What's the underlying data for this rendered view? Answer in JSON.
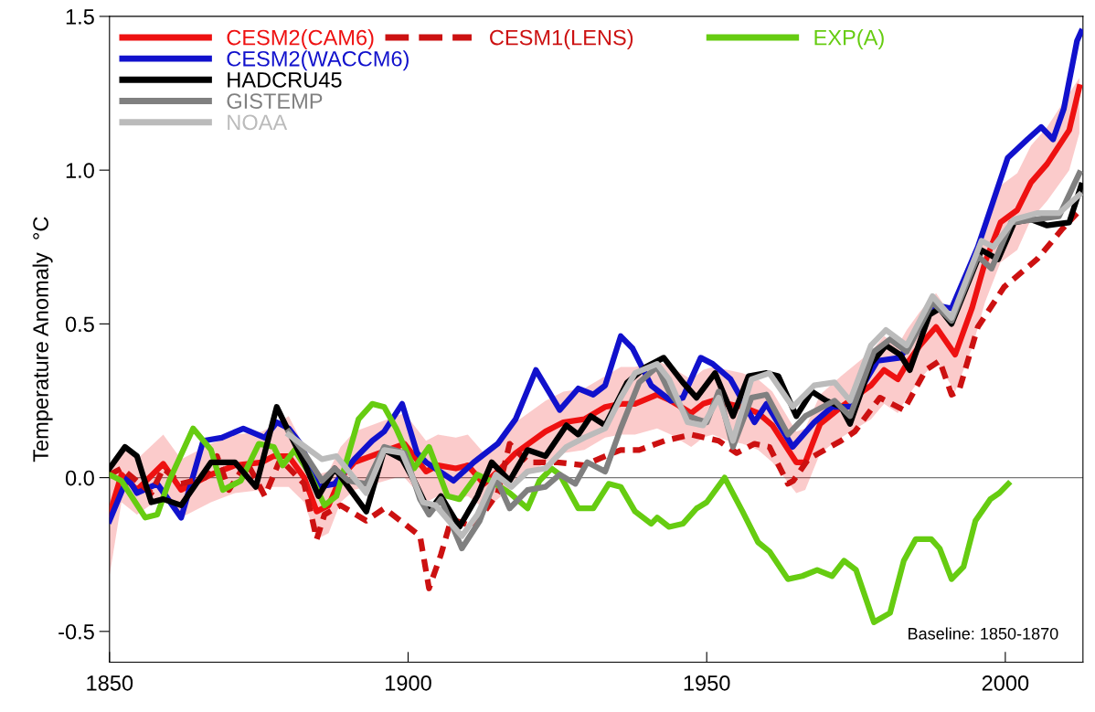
{
  "chart_data": {
    "type": "line",
    "ylabel": "Temperature Anomaly  °C",
    "xlim": [
      1850,
      2013
    ],
    "xticks": [
      1850,
      1900,
      1950,
      2000
    ],
    "ylim": [
      -0.6,
      1.5
    ],
    "yticks": [
      {
        "value": -0.5,
        "label": "-0.5"
      },
      {
        "value": 0,
        "label": "0.0"
      },
      {
        "value": 0.5,
        "label": "0.5"
      },
      {
        "value": 1,
        "label": "1.0"
      },
      {
        "value": 1.5,
        "label": "1.5"
      }
    ],
    "grid": false,
    "legend": "top left",
    "line_style": "solid",
    "marker": "none",
    "ref_lines": [
      {
        "axis": "y",
        "value": 0,
        "color": "#777777"
      }
    ],
    "annotations": [
      "Baseline: 1850-1870"
    ],
    "series": [
      {
        "name": "CESM2(CAM6)",
        "color": "#ee1111",
        "x": [
          1850,
          1852,
          1854.6,
          1859,
          1862,
          1867,
          1871,
          1875.5,
          1877.5,
          1880,
          1882.6,
          1884.7,
          1886.7,
          1888.7,
          1891,
          1898,
          1899.4,
          1903,
          1905,
          1908,
          1910,
          1912.7,
          1915,
          1918,
          1923,
          1926,
          1929.5,
          1933,
          1935.6,
          1938,
          1941.7,
          1944,
          1947.4,
          1949.4,
          1951,
          1953.5,
          1956,
          1958.6,
          1961,
          1965,
          1966.5,
          1969,
          1972.5,
          1977.5,
          1979.7,
          1982,
          1983.5,
          1985.7,
          1988.4,
          1991.6,
          1994.4,
          1996.6,
          1999.2,
          2002,
          2004.3,
          2007,
          2010.7,
          2012.4
        ],
        "values": [
          -0.12,
          0.01,
          -0.04,
          0.045,
          -0.04,
          0.01,
          0.04,
          0.05,
          0.07,
          0.07,
          0,
          -0.11,
          -0.09,
          0,
          0.05,
          0.1,
          0.11,
          0.02,
          0.04,
          0.03,
          0.04,
          -0.02,
          0.02,
          0.08,
          0.15,
          0.18,
          0.19,
          0.23,
          0.24,
          0.24,
          0.27,
          0.25,
          0.21,
          0.24,
          0.25,
          0.24,
          0.23,
          0.21,
          0.17,
          0.05,
          0.05,
          0.175,
          0.23,
          0.3,
          0.35,
          0.32,
          0.37,
          0.43,
          0.49,
          0.4,
          0.55,
          0.7,
          0.83,
          0.87,
          0.96,
          1.02,
          1.13,
          1.27
        ],
        "lower": [
          -0.32,
          -0.08,
          -0.12,
          -0.06,
          -0.13,
          -0.08,
          -0.05,
          -0.04,
          -0.03,
          -0.03,
          -0.08,
          -0.2,
          -0.18,
          -0.08,
          -0.04,
          0.0,
          0.0,
          -0.08,
          -0.06,
          -0.07,
          -0.06,
          -0.1,
          -0.07,
          -0.02,
          0.05,
          0.08,
          0.09,
          0.13,
          0.14,
          0.14,
          0.16,
          0.14,
          0.1,
          0.13,
          0.14,
          0.12,
          0.11,
          0.09,
          0.05,
          -0.05,
          -0.04,
          0.08,
          0.13,
          0.19,
          0.24,
          0.21,
          0.26,
          0.32,
          0.38,
          0.28,
          0.42,
          0.57,
          0.7,
          0.74,
          0.84,
          0.9,
          1.0,
          1.12
        ],
        "upper": [
          0.0,
          0.1,
          0.06,
          0.14,
          0.06,
          0.11,
          0.14,
          0.15,
          0.17,
          0.2,
          0.1,
          0.01,
          0.02,
          0.1,
          0.15,
          0.2,
          0.21,
          0.12,
          0.14,
          0.13,
          0.14,
          0.08,
          0.12,
          0.18,
          0.25,
          0.28,
          0.29,
          0.33,
          0.36,
          0.36,
          0.38,
          0.36,
          0.32,
          0.35,
          0.36,
          0.35,
          0.34,
          0.32,
          0.28,
          0.15,
          0.16,
          0.27,
          0.33,
          0.41,
          0.46,
          0.43,
          0.48,
          0.54,
          0.6,
          0.51,
          0.67,
          0.82,
          0.95,
          0.99,
          1.08,
          1.14,
          1.25,
          1.3
        ]
      },
      {
        "name": "CESM2(WACCM6)",
        "color": "#1111cc",
        "x": [
          1850,
          1853,
          1854.6,
          1858,
          1862,
          1865.7,
          1868.8,
          1872.4,
          1876,
          1878,
          1880,
          1882,
          1885,
          1887.7,
          1891,
          1894,
          1896,
          1899,
          1901.5,
          1903,
          1907.6,
          1911,
          1915,
          1918,
          1921.4,
          1925.4,
          1928.5,
          1931,
          1933,
          1935.6,
          1937.6,
          1940.7,
          1944,
          1946,
          1949,
          1951,
          1954,
          1958,
          1960,
          1964.4,
          1968,
          1971,
          1974,
          1978.6,
          1982.4,
          1985.7,
          1988.4,
          1991,
          1995.4,
          2000.4,
          2003.7,
          2006,
          2008,
          2009.8,
          2012,
          2012.7
        ],
        "values": [
          -0.14,
          0,
          -0.05,
          -0.02,
          -0.13,
          0.12,
          0.13,
          0.16,
          0.13,
          0.18,
          0.16,
          0.11,
          -0.03,
          -0.02,
          0.06,
          0.12,
          0.15,
          0.24,
          0.08,
          0.05,
          -0.01,
          0.05,
          0.11,
          0.19,
          0.35,
          0.22,
          0.29,
          0.27,
          0.3,
          0.46,
          0.42,
          0.3,
          0.25,
          0.26,
          0.39,
          0.37,
          0.32,
          0.18,
          0.24,
          0.1,
          0.18,
          0.23,
          0.23,
          0.38,
          0.39,
          0.49,
          0.56,
          0.55,
          0.75,
          1.04,
          1.1,
          1.14,
          1.1,
          1.2,
          1.42,
          1.45
        ]
      },
      {
        "name": "CESM1(LENS)",
        "color": "#cc1111",
        "line_style": "dashed",
        "x": [
          1850,
          1852,
          1857,
          1859,
          1862,
          1866,
          1868,
          1870,
          1873,
          1876,
          1878.6,
          1882.6,
          1884.7,
          1886,
          1888.7,
          1893,
          1896,
          1899.4,
          1902,
          1903.5,
          1905.5,
          1907,
          1908,
          1911,
          1915,
          1917,
          1920,
          1925,
          1929.5,
          1933,
          1935.6,
          1938.7,
          1943,
          1947.4,
          1952,
          1955,
          1958,
          1960.5,
          1963.6,
          1964.5,
          1967,
          1972.5,
          1974.8,
          1979,
          1983,
          1986.7,
          1989,
          1991,
          1992.2,
          1995.4,
          1999.8,
          2005.3,
          2009.6,
          2012
        ],
        "values": [
          0.01,
          0.03,
          -0.05,
          0.03,
          -0.02,
          0,
          0.07,
          -0.04,
          0.05,
          -0.06,
          0.06,
          -0.02,
          -0.2,
          -0.12,
          -0.09,
          -0.14,
          -0.1,
          -0.15,
          -0.19,
          -0.36,
          -0.25,
          -0.15,
          -0.14,
          -0.16,
          -0.05,
          0.11,
          0.05,
          0.05,
          0.04,
          0.07,
          0.09,
          0.09,
          0.12,
          0.14,
          0.12,
          0.08,
          0.11,
          0.1,
          -0.02,
          -0.01,
          0.06,
          0.12,
          0.15,
          0.26,
          0.22,
          0.35,
          0.38,
          0.27,
          0.28,
          0.49,
          0.62,
          0.71,
          0.81,
          0.86
        ]
      },
      {
        "name": "EXP(A)",
        "color": "#66cc11",
        "x": [
          1850,
          1852,
          1856,
          1858,
          1860,
          1864,
          1867,
          1869,
          1872,
          1875,
          1877.5,
          1879,
          1881,
          1883.6,
          1886,
          1888,
          1891.7,
          1894,
          1896,
          1898,
          1901,
          1903.5,
          1906.6,
          1908.6,
          1911.6,
          1913.8,
          1917,
          1920,
          1922,
          1924,
          1925.4,
          1928.5,
          1931,
          1933.6,
          1935.6,
          1938,
          1940.7,
          1941.7,
          1943.7,
          1946,
          1948.3,
          1950,
          1953,
          1956,
          1958.6,
          1960.5,
          1963.6,
          1966,
          1968.5,
          1971,
          1973,
          1975,
          1978,
          1980.7,
          1983,
          1985,
          1987.6,
          1989,
          1991,
          1993,
          1995,
          1997.5,
          1999,
          2000.5
        ],
        "values": [
          0.01,
          -0.01,
          -0.13,
          -0.12,
          -0.01,
          0.16,
          0.09,
          -0.04,
          -0.01,
          0.11,
          0.1,
          0.04,
          0.09,
          0.01,
          -0.09,
          -0.06,
          0.19,
          0.24,
          0.23,
          0.16,
          0.03,
          0.1,
          -0.06,
          -0.07,
          0.01,
          -0.01,
          -0.05,
          -0.1,
          -0.01,
          0.03,
          0.01,
          -0.1,
          -0.1,
          -0.02,
          -0.03,
          -0.11,
          -0.15,
          -0.13,
          -0.16,
          -0.15,
          -0.1,
          -0.08,
          0,
          -0.11,
          -0.21,
          -0.24,
          -0.33,
          -0.32,
          -0.3,
          -0.32,
          -0.27,
          -0.3,
          -0.47,
          -0.44,
          -0.27,
          -0.2,
          -0.2,
          -0.23,
          -0.33,
          -0.29,
          -0.14,
          -0.07,
          -0.05,
          -0.02
        ]
      },
      {
        "name": "HADCRU45",
        "color": "#000000",
        "x": [
          1850,
          1852.6,
          1854.6,
          1857,
          1859,
          1862,
          1867,
          1871,
          1874.5,
          1878,
          1880,
          1882.6,
          1885,
          1887.7,
          1893,
          1896,
          1899,
          1901,
          1903.5,
          1905.5,
          1908.6,
          1911.6,
          1914,
          1917,
          1920,
          1923,
          1926.5,
          1928.5,
          1930.6,
          1933,
          1936.7,
          1939.8,
          1942.8,
          1946,
          1948.3,
          1951.4,
          1954.4,
          1957,
          1960,
          1962,
          1965,
          1967.6,
          1970,
          1972.5,
          1974,
          1977.5,
          1980,
          1982.4,
          1984,
          1987.3,
          1989,
          1991,
          1996,
          1998.8,
          2001.5,
          2004.3,
          2007,
          2010.7,
          2012.7
        ],
        "values": [
          0.03,
          0.1,
          0.07,
          -0.08,
          -0.07,
          -0.09,
          0.05,
          0.05,
          -0.03,
          0.23,
          0.15,
          0.05,
          -0.06,
          0.03,
          -0.11,
          0.09,
          0.06,
          -0.01,
          -0.11,
          -0.06,
          -0.16,
          -0.06,
          0.05,
          -0.01,
          0.09,
          0.07,
          0.17,
          0.14,
          0.2,
          0.17,
          0.31,
          0.36,
          0.39,
          0.31,
          0.26,
          0.34,
          0.2,
          0.33,
          0.34,
          0.33,
          0.2,
          0.28,
          0.25,
          0.23,
          0.175,
          0.37,
          0.43,
          0.4,
          0.35,
          0.53,
          0.55,
          0.5,
          0.74,
          0.71,
          0.83,
          0.84,
          0.82,
          0.83,
          0.95
        ]
      },
      {
        "name": "GISTEMP",
        "color": "#808080",
        "x": [
          1880,
          1882.6,
          1885.6,
          1887.7,
          1890,
          1893,
          1896,
          1899.4,
          1902,
          1903.5,
          1905.5,
          1909,
          1912,
          1914.7,
          1917,
          1920,
          1923,
          1925.4,
          1928,
          1930,
          1933,
          1935.6,
          1938.7,
          1941.7,
          1943.7,
          1946.8,
          1950,
          1952,
          1954.4,
          1957.5,
          1960,
          1963.6,
          1966.5,
          1971.4,
          1974,
          1978,
          1980.7,
          1983.5,
          1987.8,
          1991,
          1995.4,
          1997.7,
          2001,
          2005.3,
          2009,
          2012.4
        ],
        "values": [
          0.15,
          0.08,
          -0.01,
          0.03,
          -0.01,
          -0.02,
          0.1,
          0.08,
          -0.07,
          -0.12,
          -0.07,
          -0.23,
          -0.14,
          0,
          -0.1,
          -0.04,
          -0.03,
          0.01,
          -0.02,
          0.05,
          0.02,
          0.16,
          0.31,
          0.36,
          0.28,
          0.2,
          0.18,
          0.28,
          0.1,
          0.26,
          0.27,
          0.14,
          0.2,
          0.25,
          0.2,
          0.41,
          0.45,
          0.41,
          0.57,
          0.51,
          0.72,
          0.68,
          0.83,
          0.84,
          0.85,
          0.99
        ]
      },
      {
        "name": "NOAA",
        "color": "#bbbbbb",
        "x": [
          1880,
          1885.6,
          1888,
          1893,
          1896,
          1899,
          1902.5,
          1904.6,
          1909,
          1911.6,
          1914.7,
          1917.3,
          1920,
          1923,
          1926.5,
          1929.5,
          1933,
          1935.6,
          1938,
          1941.7,
          1943.7,
          1946.8,
          1949.4,
          1952,
          1954.4,
          1957.5,
          1960.5,
          1964.4,
          1968,
          1971.4,
          1974,
          1977.5,
          1980,
          1983.5,
          1987.8,
          1991,
          1996,
          1998,
          2001.5,
          2005.3,
          2009,
          2012.4
        ],
        "values": [
          0.14,
          0.06,
          0.07,
          -0.05,
          0.09,
          0.08,
          -0.08,
          -0.09,
          -0.19,
          -0.12,
          0.01,
          -0.03,
          0.02,
          0.03,
          0.1,
          0.13,
          0.16,
          0.26,
          0.34,
          0.37,
          0.32,
          0.18,
          0.17,
          0.26,
          0.12,
          0.32,
          0.34,
          0.23,
          0.3,
          0.31,
          0.25,
          0.43,
          0.48,
          0.43,
          0.59,
          0.52,
          0.77,
          0.75,
          0.84,
          0.86,
          0.86,
          0.92
        ]
      }
    ]
  }
}
